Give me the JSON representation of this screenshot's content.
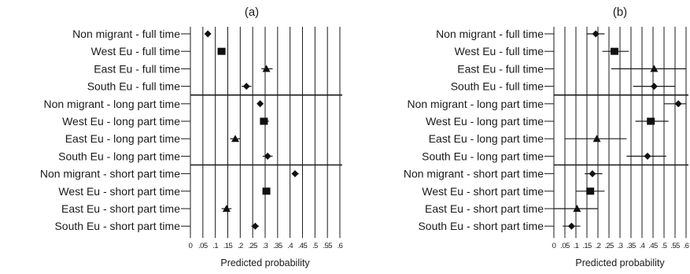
{
  "chart_data": [
    {
      "type": "scatter",
      "panel_label": "(a)",
      "xlabel": "Predicted probability",
      "ylabel": "",
      "xlim": [
        0,
        0.6
      ],
      "xticks": [
        0,
        0.05,
        0.1,
        0.15,
        0.2,
        0.25,
        0.3,
        0.35,
        0.4,
        0.45,
        0.5,
        0.55,
        0.6
      ],
      "xtick_labels": [
        "0",
        ".05",
        ".1",
        ".15",
        ".2",
        ".25",
        ".3",
        ".35",
        ".4",
        ".45",
        ".5",
        ".55",
        ".6"
      ],
      "grid": true,
      "groups": [
        "full time",
        "long part time",
        "short part time"
      ],
      "categories": [
        "Non migrant - full time",
        "West Eu - full time",
        "East Eu - full time",
        "South Eu - full time",
        "Non migrant - long part time",
        "West Eu - long part time",
        "East Eu - long part time",
        "South Eu - long part time",
        "Non migrant - short part time",
        "West Eu - short part time",
        "East Eu - short part time",
        "South Eu - short part time"
      ],
      "points": [
        {
          "value": 0.07,
          "lo": 0.06,
          "hi": 0.08,
          "marker": "diamond"
        },
        {
          "value": 0.125,
          "lo": 0.11,
          "hi": 0.14,
          "marker": "square"
        },
        {
          "value": 0.305,
          "lo": 0.285,
          "hi": 0.33,
          "marker": "triangle"
        },
        {
          "value": 0.225,
          "lo": 0.205,
          "hi": 0.245,
          "marker": "diamond"
        },
        {
          "value": 0.28,
          "lo": 0.27,
          "hi": 0.29,
          "marker": "diamond"
        },
        {
          "value": 0.295,
          "lo": 0.28,
          "hi": 0.315,
          "marker": "square"
        },
        {
          "value": 0.18,
          "lo": 0.16,
          "hi": 0.2,
          "marker": "triangle"
        },
        {
          "value": 0.31,
          "lo": 0.29,
          "hi": 0.33,
          "marker": "diamond"
        },
        {
          "value": 0.42,
          "lo": 0.41,
          "hi": 0.435,
          "marker": "diamond"
        },
        {
          "value": 0.305,
          "lo": 0.29,
          "hi": 0.32,
          "marker": "square"
        },
        {
          "value": 0.145,
          "lo": 0.125,
          "hi": 0.165,
          "marker": "triangle"
        },
        {
          "value": 0.26,
          "lo": 0.245,
          "hi": 0.275,
          "marker": "diamond"
        }
      ]
    },
    {
      "type": "scatter",
      "panel_label": "(b)",
      "xlabel": "Predicted probability",
      "ylabel": "",
      "xlim": [
        0,
        0.6
      ],
      "xticks": [
        0,
        0.05,
        0.1,
        0.15,
        0.2,
        0.25,
        0.3,
        0.35,
        0.4,
        0.45,
        0.5,
        0.55,
        0.6
      ],
      "xtick_labels": [
        "0",
        ".05",
        ".1",
        ".15",
        ".2",
        ".25",
        ".3",
        ".35",
        ".4",
        ".45",
        ".5",
        ".55",
        ".6"
      ],
      "grid": true,
      "groups": [
        "full time",
        "long part time",
        "short part time"
      ],
      "categories": [
        "Non migrant - full time",
        "West Eu - full time",
        "East Eu - full time",
        "South Eu - full time",
        "Non migrant - long part time",
        "West Eu - long part time",
        "East Eu - long part time",
        "South Eu - long part time",
        "Non migrant - short part time",
        "West Eu - short part time",
        "East Eu - short part time",
        "South Eu - short part time"
      ],
      "points": [
        {
          "value": 0.19,
          "lo": 0.15,
          "hi": 0.23,
          "marker": "diamond"
        },
        {
          "value": 0.275,
          "lo": 0.22,
          "hi": 0.34,
          "marker": "square"
        },
        {
          "value": 0.455,
          "lo": 0.26,
          "hi": 0.6,
          "marker": "triangle"
        },
        {
          "value": 0.455,
          "lo": 0.36,
          "hi": 0.55,
          "marker": "diamond"
        },
        {
          "value": 0.565,
          "lo": 0.5,
          "hi": 0.6,
          "marker": "diamond"
        },
        {
          "value": 0.44,
          "lo": 0.37,
          "hi": 0.52,
          "marker": "square"
        },
        {
          "value": 0.195,
          "lo": 0.05,
          "hi": 0.33,
          "marker": "triangle"
        },
        {
          "value": 0.425,
          "lo": 0.33,
          "hi": 0.51,
          "marker": "diamond"
        },
        {
          "value": 0.175,
          "lo": 0.14,
          "hi": 0.22,
          "marker": "diamond"
        },
        {
          "value": 0.165,
          "lo": 0.1,
          "hi": 0.23,
          "marker": "square"
        },
        {
          "value": 0.105,
          "lo": 0.0,
          "hi": 0.2,
          "marker": "triangle"
        },
        {
          "value": 0.08,
          "lo": 0.04,
          "hi": 0.12,
          "marker": "diamond"
        }
      ]
    }
  ]
}
